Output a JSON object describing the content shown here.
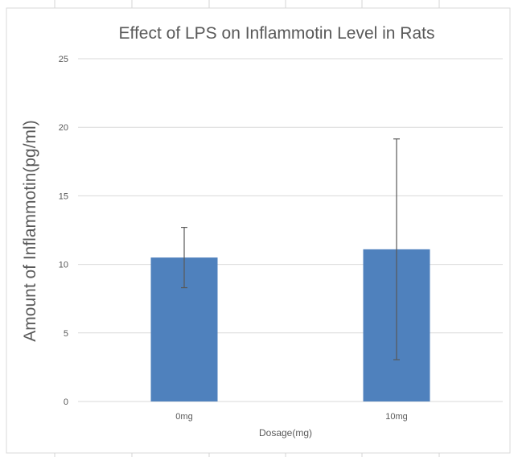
{
  "chart_data": {
    "type": "bar",
    "title": "Effect of LPS on Inflammotin Level in Rats",
    "xlabel": "Dosage(mg)",
    "ylabel": "Amount of Inflammotin(pg/ml)",
    "categories": [
      "0mg",
      "10mg"
    ],
    "values": [
      10.5,
      11.1
    ],
    "error": [
      2.2,
      8.05
    ],
    "ylim": [
      0,
      25
    ],
    "yticks": [
      "0",
      "5",
      "10",
      "15",
      "20",
      "25"
    ],
    "grid": true,
    "bar_color": "#4f81bd",
    "errorbar_color": "#595959"
  }
}
